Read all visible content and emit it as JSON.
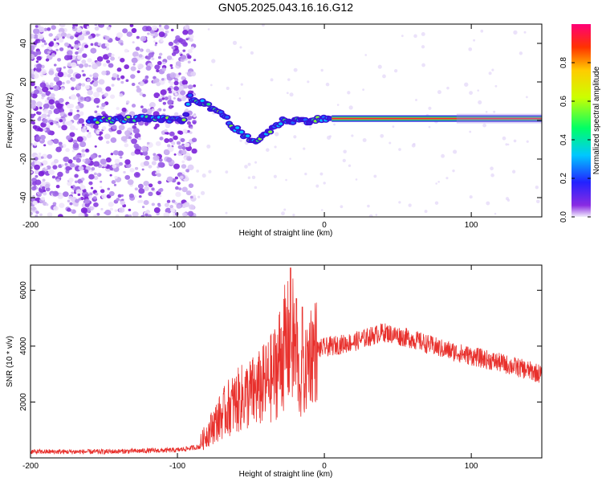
{
  "title": "GN05.2025.043.16.16.G12",
  "chart_data": [
    {
      "type": "heatmap",
      "xlabel": "Height of straight line (km)",
      "ylabel": "Frequency (Hz)",
      "xlim": [
        -200,
        148
      ],
      "ylim": [
        -50,
        50
      ],
      "xticks": [
        -200,
        -100,
        0,
        100
      ],
      "yticks": [
        -40,
        -20,
        0,
        20,
        40
      ],
      "colorbar": {
        "label": "Normalized spectral amplitude",
        "range": [
          0,
          1
        ],
        "ticks": [
          "0.0",
          "0.2",
          "0.4",
          "0.6",
          "0.8"
        ],
        "colormap": "rainbow (violet low to red/magenta high)"
      },
      "features": {
        "noise_region_x": [
          -200,
          -88
        ],
        "signal_track": [
          {
            "x": -160,
            "y": 0
          },
          {
            "x": -140,
            "y": 0.5
          },
          {
            "x": -125,
            "y": 1
          },
          {
            "x": -110,
            "y": 0.5
          },
          {
            "x": -95,
            "y": 0
          },
          {
            "x": -92,
            "y": 12
          },
          {
            "x": -85,
            "y": 10
          },
          {
            "x": -78,
            "y": 7
          },
          {
            "x": -70,
            "y": 4
          },
          {
            "x": -62,
            "y": -3
          },
          {
            "x": -55,
            "y": -8
          },
          {
            "x": -48,
            "y": -11
          },
          {
            "x": -42,
            "y": -8
          },
          {
            "x": -35,
            "y": -4
          },
          {
            "x": -28,
            "y": 0
          },
          {
            "x": -20,
            "y": 0
          },
          {
            "x": -10,
            "y": 0
          },
          {
            "x": 0,
            "y": 1
          },
          {
            "x": 5,
            "y": 1
          },
          {
            "x": 148,
            "y": 1
          }
        ]
      }
    },
    {
      "type": "line",
      "xlabel": "Height of straight line (km)",
      "ylabel": "SNR (10 * v/v)",
      "xlim": [
        -200,
        148
      ],
      "ylim": [
        0,
        6900
      ],
      "xticks": [
        -200,
        -100,
        0,
        100
      ],
      "yticks": [
        2000,
        4000,
        6000
      ],
      "color": "#e8302c",
      "series_envelope": [
        {
          "x": -200,
          "y": 220
        },
        {
          "x": -150,
          "y": 220
        },
        {
          "x": -100,
          "y": 280
        },
        {
          "x": -85,
          "y": 400
        },
        {
          "x": -75,
          "y": 1000
        },
        {
          "x": -65,
          "y": 1500
        },
        {
          "x": -55,
          "y": 1800
        },
        {
          "x": -45,
          "y": 2000
        },
        {
          "x": -35,
          "y": 2400
        },
        {
          "x": -28,
          "y": 3200
        },
        {
          "x": -22,
          "y": 3500
        },
        {
          "x": -15,
          "y": 2500
        },
        {
          "x": -10,
          "y": 3800
        },
        {
          "x": 0,
          "y": 3950
        },
        {
          "x": 20,
          "y": 4150
        },
        {
          "x": 40,
          "y": 4500
        },
        {
          "x": 60,
          "y": 4250
        },
        {
          "x": 80,
          "y": 3900
        },
        {
          "x": 100,
          "y": 3650
        },
        {
          "x": 120,
          "y": 3400
        },
        {
          "x": 148,
          "y": 3000
        }
      ]
    }
  ]
}
